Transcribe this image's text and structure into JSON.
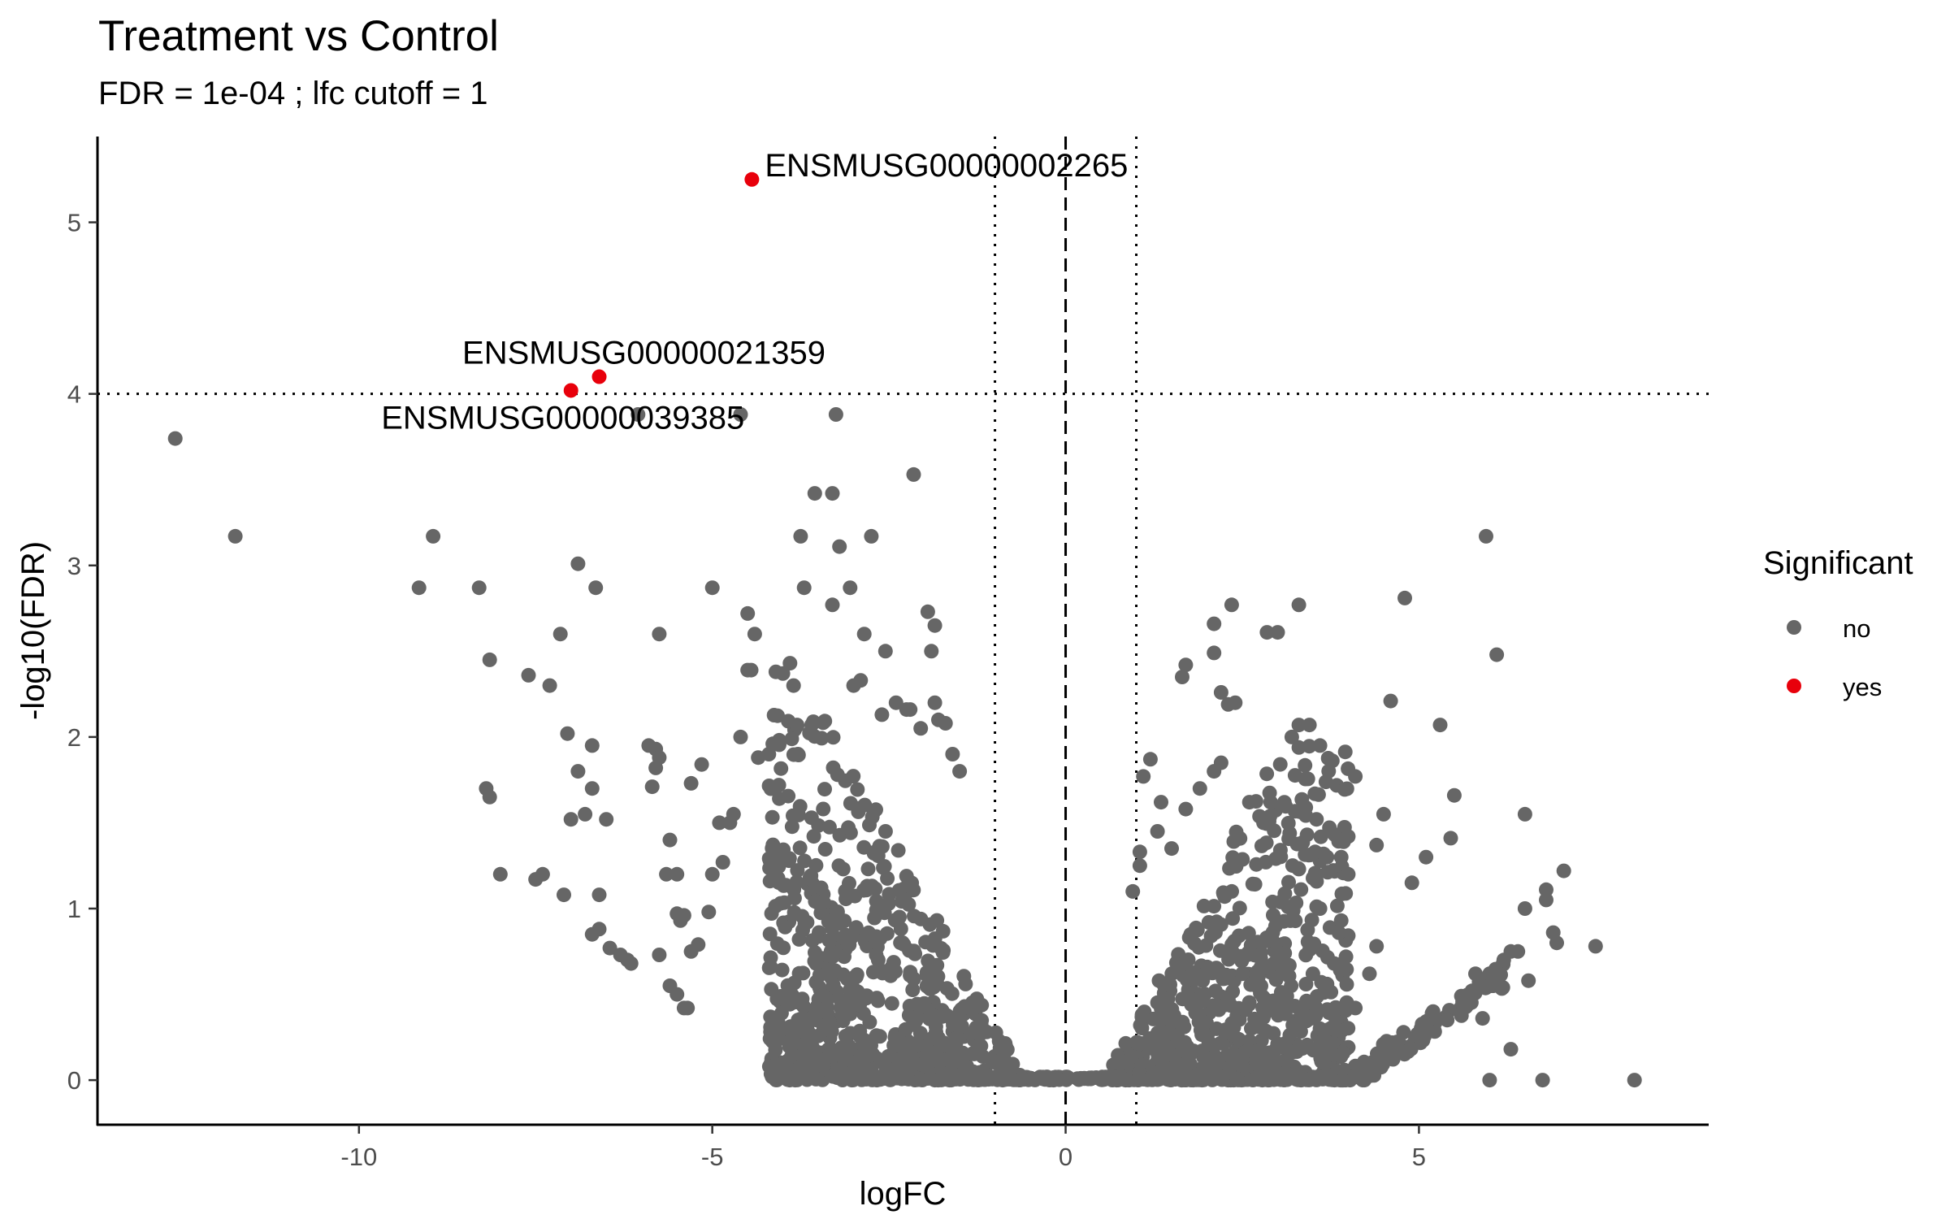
{
  "chart_data": {
    "type": "scatter",
    "title": "Treatment vs Control",
    "subtitle": "FDR =  1e-04 ; lfc cutoff =  1",
    "xlabel": "logFC",
    "ylabel": "-log10(FDR)",
    "xlim": [
      -13.7,
      9.1
    ],
    "ylim": [
      -0.26,
      5.5
    ],
    "x_ticks": [
      -10,
      -5,
      0,
      5
    ],
    "y_ticks": [
      0,
      1,
      2,
      3,
      4,
      5
    ],
    "grid": false,
    "legend": {
      "title": "Significant",
      "position": "right",
      "entries": [
        {
          "label": "no",
          "color": "#666666"
        },
        {
          "label": "yes",
          "color": "#e8000b"
        }
      ]
    },
    "reference_lines": {
      "vertical_dashed": [
        0
      ],
      "vertical_dotted": [
        -1,
        1
      ],
      "horizontal_dotted": [
        4
      ]
    },
    "series": [
      {
        "name": "yes",
        "color": "#e8000b",
        "points": [
          {
            "x": -4.44,
            "y": 5.25,
            "label": "ENSMUSG00000002265"
          },
          {
            "x": -6.6,
            "y": 4.1,
            "label": "ENSMUSG00000021359"
          },
          {
            "x": -7.0,
            "y": 4.02,
            "label": "ENSMUSG00000039385"
          }
        ]
      },
      {
        "name": "no",
        "color": "#666666",
        "points": [
          [
            -12.6,
            3.74
          ],
          [
            -11.75,
            3.17
          ],
          [
            -9.15,
            2.87
          ],
          [
            -8.95,
            3.17
          ],
          [
            -8.3,
            2.87
          ],
          [
            -8.15,
            2.45
          ],
          [
            -8.2,
            1.7
          ],
          [
            -8.15,
            1.65
          ],
          [
            -8.0,
            1.2
          ],
          [
            -7.6,
            2.36
          ],
          [
            -7.3,
            2.3
          ],
          [
            -7.15,
            2.6
          ],
          [
            -7.05,
            2.02
          ],
          [
            -6.9,
            1.8
          ],
          [
            -7.0,
            1.52
          ],
          [
            -6.8,
            1.55
          ],
          [
            -6.7,
            1.95
          ],
          [
            -6.7,
            1.7
          ],
          [
            -6.9,
            3.01
          ],
          [
            -6.65,
            2.87
          ],
          [
            -7.4,
            1.2
          ],
          [
            -7.5,
            1.17
          ],
          [
            -7.1,
            1.08
          ],
          [
            -6.6,
            1.08
          ],
          [
            -6.7,
            0.85
          ],
          [
            -6.6,
            0.88
          ],
          [
            -6.5,
            1.52
          ],
          [
            -6.45,
            0.77
          ],
          [
            -6.3,
            0.73
          ],
          [
            -6.2,
            0.7
          ],
          [
            -6.15,
            0.68
          ],
          [
            -5.9,
            1.95
          ],
          [
            -5.8,
            1.93
          ],
          [
            -5.75,
            1.88
          ],
          [
            -5.8,
            1.82
          ],
          [
            -5.85,
            1.71
          ],
          [
            -5.75,
            2.6
          ],
          [
            -5.6,
            1.4
          ],
          [
            -5.65,
            1.2
          ],
          [
            -5.5,
            1.2
          ],
          [
            -5.5,
            0.97
          ],
          [
            -5.4,
            0.96
          ],
          [
            -5.45,
            0.93
          ],
          [
            -5.3,
            0.75
          ],
          [
            -5.2,
            0.79
          ],
          [
            -5.05,
            0.98
          ],
          [
            -5.75,
            0.73
          ],
          [
            -5.6,
            0.55
          ],
          [
            -5.5,
            0.5
          ],
          [
            -5.4,
            0.42
          ],
          [
            -5.35,
            0.42
          ],
          [
            -5.3,
            1.73
          ],
          [
            -5.15,
            1.84
          ],
          [
            -5.0,
            2.87
          ],
          [
            -4.9,
            1.5
          ],
          [
            -4.75,
            1.5
          ],
          [
            -4.7,
            1.55
          ],
          [
            -4.6,
            2.0
          ],
          [
            -4.85,
            1.27
          ],
          [
            -5.0,
            1.2
          ],
          [
            -4.5,
            2.72
          ],
          [
            -4.4,
            2.6
          ],
          [
            -4.5,
            2.39
          ],
          [
            -4.45,
            2.39
          ],
          [
            -4.35,
            1.88
          ],
          [
            -4.2,
            1.9
          ],
          [
            -4.1,
            2.38
          ],
          [
            -4.0,
            2.37
          ],
          [
            -3.9,
            2.43
          ],
          [
            -3.85,
            2.3
          ],
          [
            -3.8,
            2.07
          ],
          [
            -3.75,
            3.17
          ],
          [
            -3.7,
            2.87
          ],
          [
            -3.55,
            3.42
          ],
          [
            -3.3,
            3.42
          ],
          [
            -3.3,
            2.77
          ],
          [
            -3.25,
            3.88
          ],
          [
            -3.2,
            3.11
          ],
          [
            -3.05,
            2.87
          ],
          [
            -3.0,
            2.3
          ],
          [
            -2.9,
            2.33
          ],
          [
            -2.85,
            2.6
          ],
          [
            -2.75,
            3.17
          ],
          [
            -2.6,
            2.13
          ],
          [
            -2.55,
            2.5
          ],
          [
            -2.4,
            2.2
          ],
          [
            -2.25,
            2.16
          ],
          [
            -2.2,
            2.16
          ],
          [
            -2.15,
            3.53
          ],
          [
            -2.05,
            2.05
          ],
          [
            -1.95,
            2.73
          ],
          [
            -1.85,
            2.65
          ],
          [
            -1.9,
            2.5
          ],
          [
            -1.85,
            2.2
          ],
          [
            -1.8,
            2.1
          ],
          [
            -1.7,
            2.08
          ],
          [
            -1.6,
            1.9
          ],
          [
            -1.5,
            1.8
          ],
          [
            -4.6,
            3.88
          ],
          [
            -6.05,
            3.88
          ],
          [
            5.95,
            3.17
          ],
          [
            6.1,
            2.48
          ],
          [
            4.8,
            2.81
          ],
          [
            4.6,
            2.21
          ],
          [
            5.3,
            2.07
          ],
          [
            5.5,
            1.66
          ],
          [
            5.45,
            1.41
          ],
          [
            5.1,
            1.3
          ],
          [
            4.9,
            1.15
          ],
          [
            4.5,
            1.55
          ],
          [
            6.5,
            1.55
          ],
          [
            7.05,
            1.22
          ],
          [
            6.8,
            1.11
          ],
          [
            6.8,
            1.05
          ],
          [
            6.5,
            1.0
          ],
          [
            7.5,
            0.78
          ],
          [
            6.9,
            0.86
          ],
          [
            6.95,
            0.8
          ],
          [
            6.3,
            0.75
          ],
          [
            6.4,
            0.75
          ],
          [
            6.55,
            0.58
          ],
          [
            6.2,
            0.7
          ],
          [
            6.0,
            0.62
          ],
          [
            6.05,
            0.55
          ],
          [
            5.8,
            0.62
          ],
          [
            5.75,
            0.52
          ],
          [
            5.6,
            0.49
          ],
          [
            5.4,
            0.35
          ],
          [
            5.2,
            0.4
          ],
          [
            5.1,
            0.32
          ],
          [
            5.0,
            0.26
          ],
          [
            5.9,
            0.36
          ],
          [
            6.3,
            0.18
          ],
          [
            8.05,
            0.0
          ],
          [
            6.75,
            0.0
          ],
          [
            6.0,
            0.0
          ],
          [
            3.0,
            2.61
          ],
          [
            2.85,
            2.61
          ],
          [
            3.3,
            2.77
          ],
          [
            2.35,
            2.77
          ],
          [
            2.1,
            2.66
          ],
          [
            2.1,
            2.49
          ],
          [
            1.7,
            2.42
          ],
          [
            1.65,
            2.35
          ],
          [
            2.2,
            2.26
          ],
          [
            2.3,
            2.19
          ],
          [
            2.4,
            2.2
          ],
          [
            3.2,
            2.0
          ],
          [
            3.3,
            2.07
          ],
          [
            3.45,
            2.07
          ],
          [
            4.1,
            1.77
          ],
          [
            3.6,
            1.95
          ],
          [
            3.55,
            1.52
          ],
          [
            4.0,
            1.42
          ],
          [
            4.4,
            1.37
          ],
          [
            3.9,
            1.3
          ],
          [
            3.7,
            1.3
          ],
          [
            4.0,
            1.2
          ],
          [
            3.3,
            1.23
          ],
          [
            2.6,
            1.62
          ],
          [
            2.8,
            1.5
          ],
          [
            2.9,
            1.62
          ],
          [
            2.2,
            1.85
          ],
          [
            2.1,
            1.8
          ],
          [
            1.9,
            1.7
          ],
          [
            1.7,
            1.58
          ],
          [
            1.5,
            1.35
          ],
          [
            1.35,
            1.62
          ],
          [
            1.2,
            1.87
          ],
          [
            1.1,
            1.77
          ],
          [
            1.3,
            1.45
          ],
          [
            1.05,
            1.33
          ],
          [
            1.05,
            1.25
          ],
          [
            0.95,
            1.1
          ],
          [
            3.6,
            1.0
          ],
          [
            3.9,
            0.93
          ],
          [
            4.4,
            0.78
          ],
          [
            4.3,
            0.62
          ],
          [
            3.8,
            0.68
          ],
          [
            3.5,
            0.62
          ],
          [
            3.1,
            0.74
          ],
          [
            2.9,
            0.83
          ],
          [
            2.7,
            0.55
          ],
          [
            2.5,
            0.62
          ],
          [
            3.0,
            0.45
          ],
          [
            3.7,
            0.56
          ],
          [
            4.1,
            0.42
          ],
          [
            3.6,
            0.3
          ],
          [
            3.7,
            0.22
          ]
        ]
      }
    ]
  }
}
